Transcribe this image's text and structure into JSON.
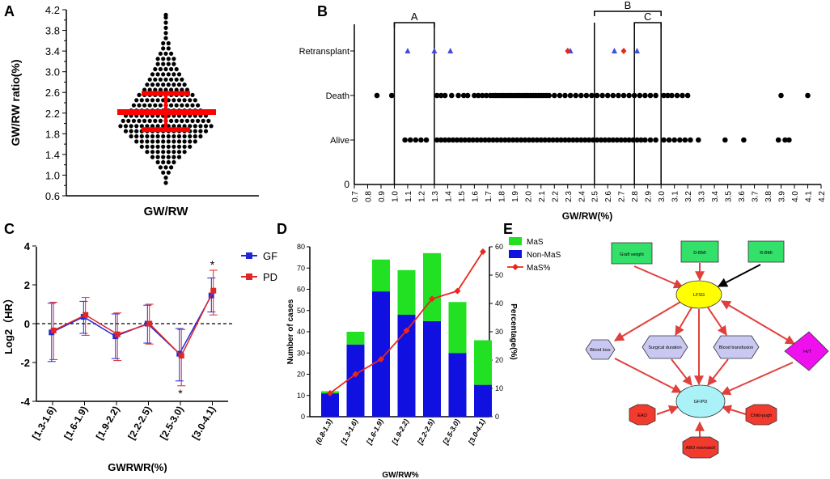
{
  "figure": {
    "panel_labels": [
      "A",
      "B",
      "C",
      "D",
      "E"
    ]
  },
  "chart_data": [
    {
      "panel": "A",
      "type": "scatter",
      "subtype": "dot-plot",
      "title": "",
      "ylabel": "GW/RW ratio(%)",
      "xlabel": "GW/RW",
      "ylim": [
        0.6,
        4.2
      ],
      "yticks": [
        "0.6",
        "0.8",
        "1.0",
        "1.2",
        "1.4",
        "1.6",
        "1.8",
        "2.0",
        "2.2",
        "2.4",
        "2.6",
        "2.8",
        "3.0",
        "3.2",
        "3.4",
        "3.6",
        "3.8",
        "4.0",
        "4.2"
      ],
      "ytick_labels_shown": [
        "0.6",
        "1.0",
        "1.4",
        "1.8",
        "2.2",
        "2.6",
        "3.0",
        "3.4",
        "3.8",
        "4.2"
      ],
      "summary": {
        "mean": 2.22,
        "q1": 1.88,
        "q3": 2.58
      },
      "bins": [
        {
          "y": 0.85,
          "n": 1
        },
        {
          "y": 0.95,
          "n": 1
        },
        {
          "y": 1.05,
          "n": 2
        },
        {
          "y": 1.15,
          "n": 3
        },
        {
          "y": 1.25,
          "n": 4
        },
        {
          "y": 1.35,
          "n": 6
        },
        {
          "y": 1.45,
          "n": 8
        },
        {
          "y": 1.55,
          "n": 10
        },
        {
          "y": 1.65,
          "n": 12
        },
        {
          "y": 1.75,
          "n": 14
        },
        {
          "y": 1.85,
          "n": 16
        },
        {
          "y": 1.95,
          "n": 18
        },
        {
          "y": 2.05,
          "n": 17
        },
        {
          "y": 2.15,
          "n": 16
        },
        {
          "y": 2.25,
          "n": 14
        },
        {
          "y": 2.35,
          "n": 13
        },
        {
          "y": 2.45,
          "n": 12
        },
        {
          "y": 2.55,
          "n": 11
        },
        {
          "y": 2.65,
          "n": 9
        },
        {
          "y": 2.75,
          "n": 8
        },
        {
          "y": 2.85,
          "n": 7
        },
        {
          "y": 2.95,
          "n": 6
        },
        {
          "y": 3.05,
          "n": 5
        },
        {
          "y": 3.15,
          "n": 4
        },
        {
          "y": 3.25,
          "n": 4
        },
        {
          "y": 3.35,
          "n": 3
        },
        {
          "y": 3.45,
          "n": 2
        },
        {
          "y": 3.55,
          "n": 2
        },
        {
          "y": 3.65,
          "n": 1
        },
        {
          "y": 3.75,
          "n": 1
        },
        {
          "y": 3.85,
          "n": 1
        },
        {
          "y": 3.95,
          "n": 1
        },
        {
          "y": 4.05,
          "n": 1
        },
        {
          "y": 4.1,
          "n": 1
        }
      ],
      "colors": {
        "points": "#000000",
        "summary": "#ff0000"
      }
    },
    {
      "panel": "B",
      "type": "scatter",
      "subtype": "strip-plot",
      "xlabel": "GW/RW(%)",
      "xlim": [
        0.7,
        4.2
      ],
      "xticks": [
        "0.7",
        "0.8",
        "0.9",
        "1.0",
        "1.1",
        "1.2",
        "1.3",
        "1.4",
        "1.5",
        "1.6",
        "1.7",
        "1.8",
        "1.9",
        "2.0",
        "2.1",
        "2.2",
        "2.3",
        "2.4",
        "2.5",
        "2.6",
        "2.7",
        "2.8",
        "2.9",
        "3.0",
        "3.1",
        "3.2",
        "3.3",
        "3.4",
        "3.5",
        "3.6",
        "3.7",
        "3.8",
        "3.9",
        "4.0",
        "4.1",
        "4.2"
      ],
      "categories": [
        "Retransplant",
        "Death",
        "Alive"
      ],
      "y_zero_label": "0",
      "vertical_lines": [
        1.0,
        1.3,
        2.5,
        2.8,
        3.0
      ],
      "brackets": [
        {
          "label": "A",
          "from": 1.0,
          "to": 1.3
        },
        {
          "label": "B",
          "from": 2.5,
          "to": 3.0
        },
        {
          "label": "C",
          "from": 2.8,
          "to": 3.0
        }
      ],
      "retransplant_triangles": [
        1.1,
        1.3,
        1.42,
        2.32,
        2.65,
        2.82
      ],
      "retransplant_diamonds": [
        2.3,
        2.72
      ],
      "death_points": [
        0.87,
        0.98,
        1.32,
        1.35,
        1.38,
        1.43,
        1.48,
        1.52,
        1.55,
        1.6,
        1.63,
        1.66,
        1.69,
        1.72,
        1.74,
        1.76,
        1.78,
        1.8,
        1.82,
        1.84,
        1.86,
        1.88,
        1.9,
        1.92,
        1.94,
        1.96,
        1.98,
        2.0,
        2.02,
        2.04,
        2.06,
        2.08,
        2.1,
        2.12,
        2.14,
        2.16,
        2.2,
        2.24,
        2.28,
        2.32,
        2.36,
        2.4,
        2.44,
        2.48,
        2.52,
        2.56,
        2.6,
        2.64,
        2.68,
        2.72,
        2.76,
        2.8,
        2.84,
        2.88,
        2.92,
        2.96,
        3.02,
        3.05,
        3.08,
        3.12,
        3.16,
        3.2,
        3.9,
        4.1
      ],
      "alive_points": [
        1.08,
        1.12,
        1.16,
        1.2,
        1.24,
        1.32,
        1.35,
        1.38,
        1.41,
        1.44,
        1.47,
        1.5,
        1.53,
        1.56,
        1.59,
        1.62,
        1.65,
        1.68,
        1.71,
        1.74,
        1.77,
        1.8,
        1.83,
        1.86,
        1.89,
        1.92,
        1.95,
        1.98,
        2.01,
        2.04,
        2.07,
        2.1,
        2.13,
        2.16,
        2.19,
        2.22,
        2.25,
        2.28,
        2.31,
        2.34,
        2.37,
        2.4,
        2.43,
        2.46,
        2.49,
        2.52,
        2.55,
        2.58,
        2.61,
        2.64,
        2.67,
        2.7,
        2.73,
        2.76,
        2.79,
        2.82,
        2.85,
        2.88,
        2.92,
        2.96,
        3.02,
        3.06,
        3.1,
        3.14,
        3.18,
        3.22,
        3.28,
        3.48,
        3.62,
        3.88,
        3.93,
        3.96
      ],
      "colors": {
        "triangles": "#3f4fd9",
        "diamonds": "#e8271f",
        "points": "#000000"
      }
    },
    {
      "panel": "C",
      "type": "line",
      "xlabel": "GWRWR(%)",
      "ylabel": "Log2（HR）",
      "ylim": [
        -4,
        4
      ],
      "yticks": [
        "-4",
        "-2",
        "0",
        "2",
        "4"
      ],
      "categories": [
        "[1.3-1.6)",
        "[1.6-1.9)",
        "[1.9-2.2)",
        "[2.2-2.5)",
        "[2.5-3.0)",
        "[3.0-4.1)"
      ],
      "series": [
        {
          "name": "GF",
          "color": "#1f28d6",
          "values": [
            -0.45,
            0.35,
            -0.65,
            0.0,
            -1.55,
            1.45
          ],
          "lower": [
            -1.95,
            -0.5,
            -1.8,
            -1.0,
            -2.95,
            0.6
          ],
          "upper": [
            1.05,
            1.15,
            0.5,
            0.95,
            -0.25,
            2.35
          ]
        },
        {
          "name": "PD",
          "color": "#e02626",
          "values": [
            -0.35,
            0.45,
            -0.55,
            0.0,
            -1.65,
            1.7
          ],
          "lower": [
            -1.85,
            -0.6,
            -1.9,
            -1.05,
            -3.2,
            0.45
          ],
          "upper": [
            1.1,
            1.35,
            0.55,
            1.0,
            -0.3,
            2.75
          ]
        }
      ],
      "annotations": [
        {
          "category": "[2.5-3.0)",
          "text": "*",
          "position": "below"
        },
        {
          "category": "[3.0-4.1)",
          "text": "*",
          "position": "above"
        }
      ]
    },
    {
      "panel": "D",
      "type": "bar",
      "subtype": "stacked-bar-with-line",
      "xlabel": "GW/RW%",
      "ylabel": "Number of cases",
      "y2label": "Percentage(%)",
      "ylim": [
        0,
        80
      ],
      "yticks": [
        "0",
        "10",
        "20",
        "30",
        "40",
        "50",
        "60",
        "70",
        "80"
      ],
      "y2lim": [
        0,
        60
      ],
      "y2ticks": [
        "0",
        "10",
        "20",
        "30",
        "40",
        "50",
        "60"
      ],
      "categories": [
        "(0.8-1.3)",
        "[1.3-1.6)",
        "[1.6-1.9)",
        "[1.9-2.2)",
        "[2.2-2.5)",
        "[2.5-3.0)",
        "[3.0-4.1)"
      ],
      "series": [
        {
          "name": "Non-MaS",
          "color": "#1010e0",
          "values": [
            11,
            34,
            59,
            48,
            45,
            30,
            15
          ]
        },
        {
          "name": "MaS",
          "color": "#22e022",
          "values": [
            1,
            6,
            15,
            21,
            32,
            24,
            21
          ]
        },
        {
          "name": "MaS%",
          "color": "#e8271f",
          "axis": "right",
          "values": [
            8.3,
            15.0,
            20.3,
            30.4,
            41.6,
            44.4,
            58.3
          ]
        }
      ],
      "legend": [
        "MaS",
        "Non-MaS",
        "MaS%"
      ]
    }
  ],
  "diagram_e": {
    "nodes": {
      "graft_weight": "Graft weight",
      "d_bmi": "D-BMI",
      "r_bmi": "R-BMI",
      "lfsg": "LFSG",
      "blood_loss": "Blood loss",
      "surgical_duration": "Surgical duration",
      "blood_transfusion": "Blood transfusion",
      "hvt": "HvT",
      "gf_pd": "GF/PD",
      "eao": "EAO",
      "child_pugh": "Child-pugh",
      "abo_mismatch": "ABO mismatch"
    },
    "colors": {
      "green": "#33e06a",
      "yellow": "#ffff00",
      "lavender": "#c8c8f2",
      "magenta": "#ee11ee",
      "cyan": "#aaf2f8",
      "red": "#f23a2e",
      "arrow": "#e0403c"
    }
  }
}
